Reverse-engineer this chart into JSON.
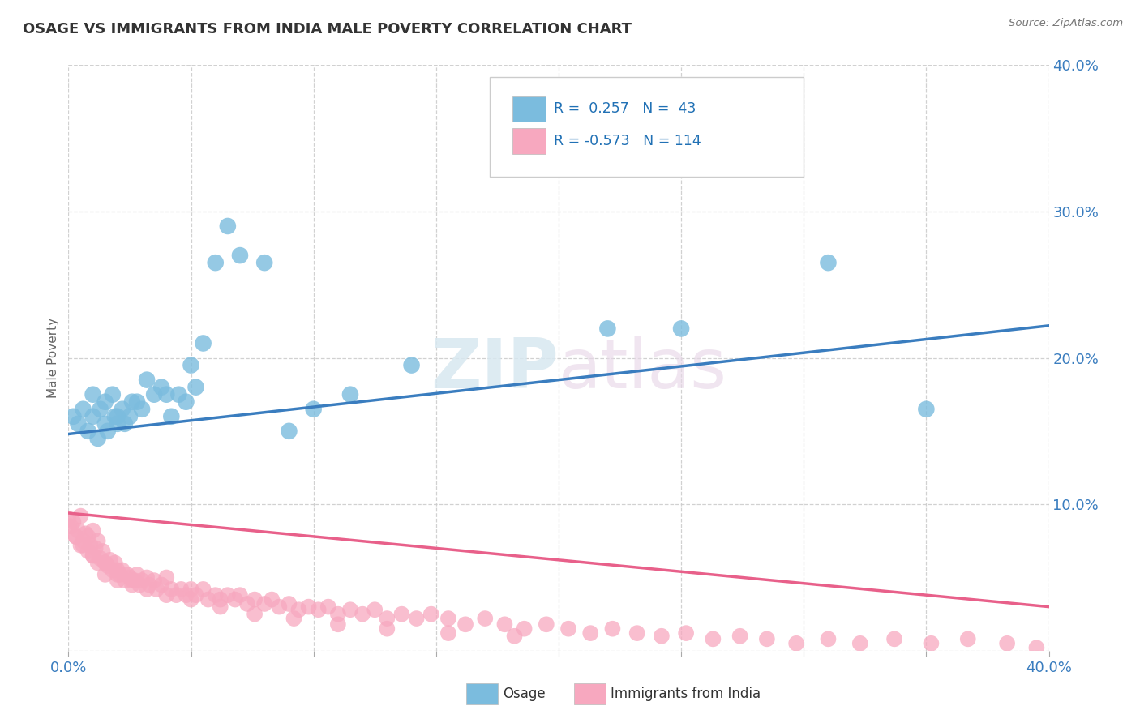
{
  "title": "OSAGE VS IMMIGRANTS FROM INDIA MALE POVERTY CORRELATION CHART",
  "source": "Source: ZipAtlas.com",
  "ylabel": "Male Poverty",
  "watermark_top": "ZIP",
  "watermark_bot": "atlas",
  "x_min": 0.0,
  "x_max": 0.4,
  "y_min": 0.0,
  "y_max": 0.4,
  "osage_color": "#7bbcde",
  "india_color": "#f7a8bf",
  "osage_line_color": "#3a7dbf",
  "india_line_color": "#e8608a",
  "legend_r_osage": "0.257",
  "legend_n_osage": "43",
  "legend_r_india": "-0.573",
  "legend_n_india": "114",
  "osage_trend_x": [
    0.0,
    0.4
  ],
  "osage_trend_y": [
    0.148,
    0.222
  ],
  "india_trend_x": [
    0.0,
    0.4
  ],
  "india_trend_y": [
    0.094,
    0.03
  ],
  "osage_x": [
    0.002,
    0.004,
    0.006,
    0.008,
    0.01,
    0.01,
    0.012,
    0.013,
    0.015,
    0.015,
    0.016,
    0.018,
    0.019,
    0.02,
    0.02,
    0.022,
    0.023,
    0.025,
    0.026,
    0.028,
    0.03,
    0.032,
    0.035,
    0.038,
    0.04,
    0.042,
    0.045,
    0.048,
    0.05,
    0.052,
    0.055,
    0.06,
    0.065,
    0.07,
    0.08,
    0.09,
    0.1,
    0.115,
    0.14,
    0.22,
    0.25,
    0.31,
    0.35
  ],
  "osage_y": [
    0.16,
    0.155,
    0.165,
    0.15,
    0.16,
    0.175,
    0.145,
    0.165,
    0.155,
    0.17,
    0.15,
    0.175,
    0.16,
    0.16,
    0.155,
    0.165,
    0.155,
    0.16,
    0.17,
    0.17,
    0.165,
    0.185,
    0.175,
    0.18,
    0.175,
    0.16,
    0.175,
    0.17,
    0.195,
    0.18,
    0.21,
    0.265,
    0.29,
    0.27,
    0.265,
    0.15,
    0.165,
    0.175,
    0.195,
    0.22,
    0.22,
    0.265,
    0.165
  ],
  "india_x": [
    0.0,
    0.001,
    0.002,
    0.003,
    0.004,
    0.005,
    0.005,
    0.006,
    0.007,
    0.008,
    0.008,
    0.009,
    0.01,
    0.01,
    0.011,
    0.012,
    0.012,
    0.013,
    0.014,
    0.015,
    0.015,
    0.016,
    0.017,
    0.018,
    0.019,
    0.02,
    0.02,
    0.021,
    0.022,
    0.023,
    0.024,
    0.025,
    0.026,
    0.027,
    0.028,
    0.029,
    0.03,
    0.032,
    0.033,
    0.035,
    0.036,
    0.038,
    0.04,
    0.042,
    0.044,
    0.046,
    0.048,
    0.05,
    0.052,
    0.055,
    0.057,
    0.06,
    0.062,
    0.065,
    0.068,
    0.07,
    0.073,
    0.076,
    0.08,
    0.083,
    0.086,
    0.09,
    0.094,
    0.098,
    0.102,
    0.106,
    0.11,
    0.115,
    0.12,
    0.125,
    0.13,
    0.136,
    0.142,
    0.148,
    0.155,
    0.162,
    0.17,
    0.178,
    0.186,
    0.195,
    0.204,
    0.213,
    0.222,
    0.232,
    0.242,
    0.252,
    0.263,
    0.274,
    0.285,
    0.297,
    0.31,
    0.323,
    0.337,
    0.352,
    0.367,
    0.383,
    0.395,
    0.0,
    0.003,
    0.006,
    0.01,
    0.015,
    0.02,
    0.026,
    0.032,
    0.04,
    0.05,
    0.062,
    0.076,
    0.092,
    0.11,
    0.13,
    0.155,
    0.182
  ],
  "india_y": [
    0.09,
    0.085,
    0.088,
    0.078,
    0.082,
    0.092,
    0.072,
    0.075,
    0.08,
    0.078,
    0.068,
    0.072,
    0.082,
    0.065,
    0.07,
    0.075,
    0.06,
    0.063,
    0.068,
    0.06,
    0.052,
    0.058,
    0.062,
    0.055,
    0.06,
    0.055,
    0.048,
    0.052,
    0.055,
    0.048,
    0.052,
    0.05,
    0.045,
    0.048,
    0.052,
    0.045,
    0.048,
    0.05,
    0.045,
    0.048,
    0.042,
    0.045,
    0.05,
    0.042,
    0.038,
    0.042,
    0.038,
    0.042,
    0.038,
    0.042,
    0.035,
    0.038,
    0.035,
    0.038,
    0.035,
    0.038,
    0.032,
    0.035,
    0.032,
    0.035,
    0.03,
    0.032,
    0.028,
    0.03,
    0.028,
    0.03,
    0.025,
    0.028,
    0.025,
    0.028,
    0.022,
    0.025,
    0.022,
    0.025,
    0.022,
    0.018,
    0.022,
    0.018,
    0.015,
    0.018,
    0.015,
    0.012,
    0.015,
    0.012,
    0.01,
    0.012,
    0.008,
    0.01,
    0.008,
    0.005,
    0.008,
    0.005,
    0.008,
    0.005,
    0.008,
    0.005,
    0.002,
    0.085,
    0.078,
    0.072,
    0.065,
    0.06,
    0.052,
    0.048,
    0.042,
    0.038,
    0.035,
    0.03,
    0.025,
    0.022,
    0.018,
    0.015,
    0.012,
    0.01
  ]
}
